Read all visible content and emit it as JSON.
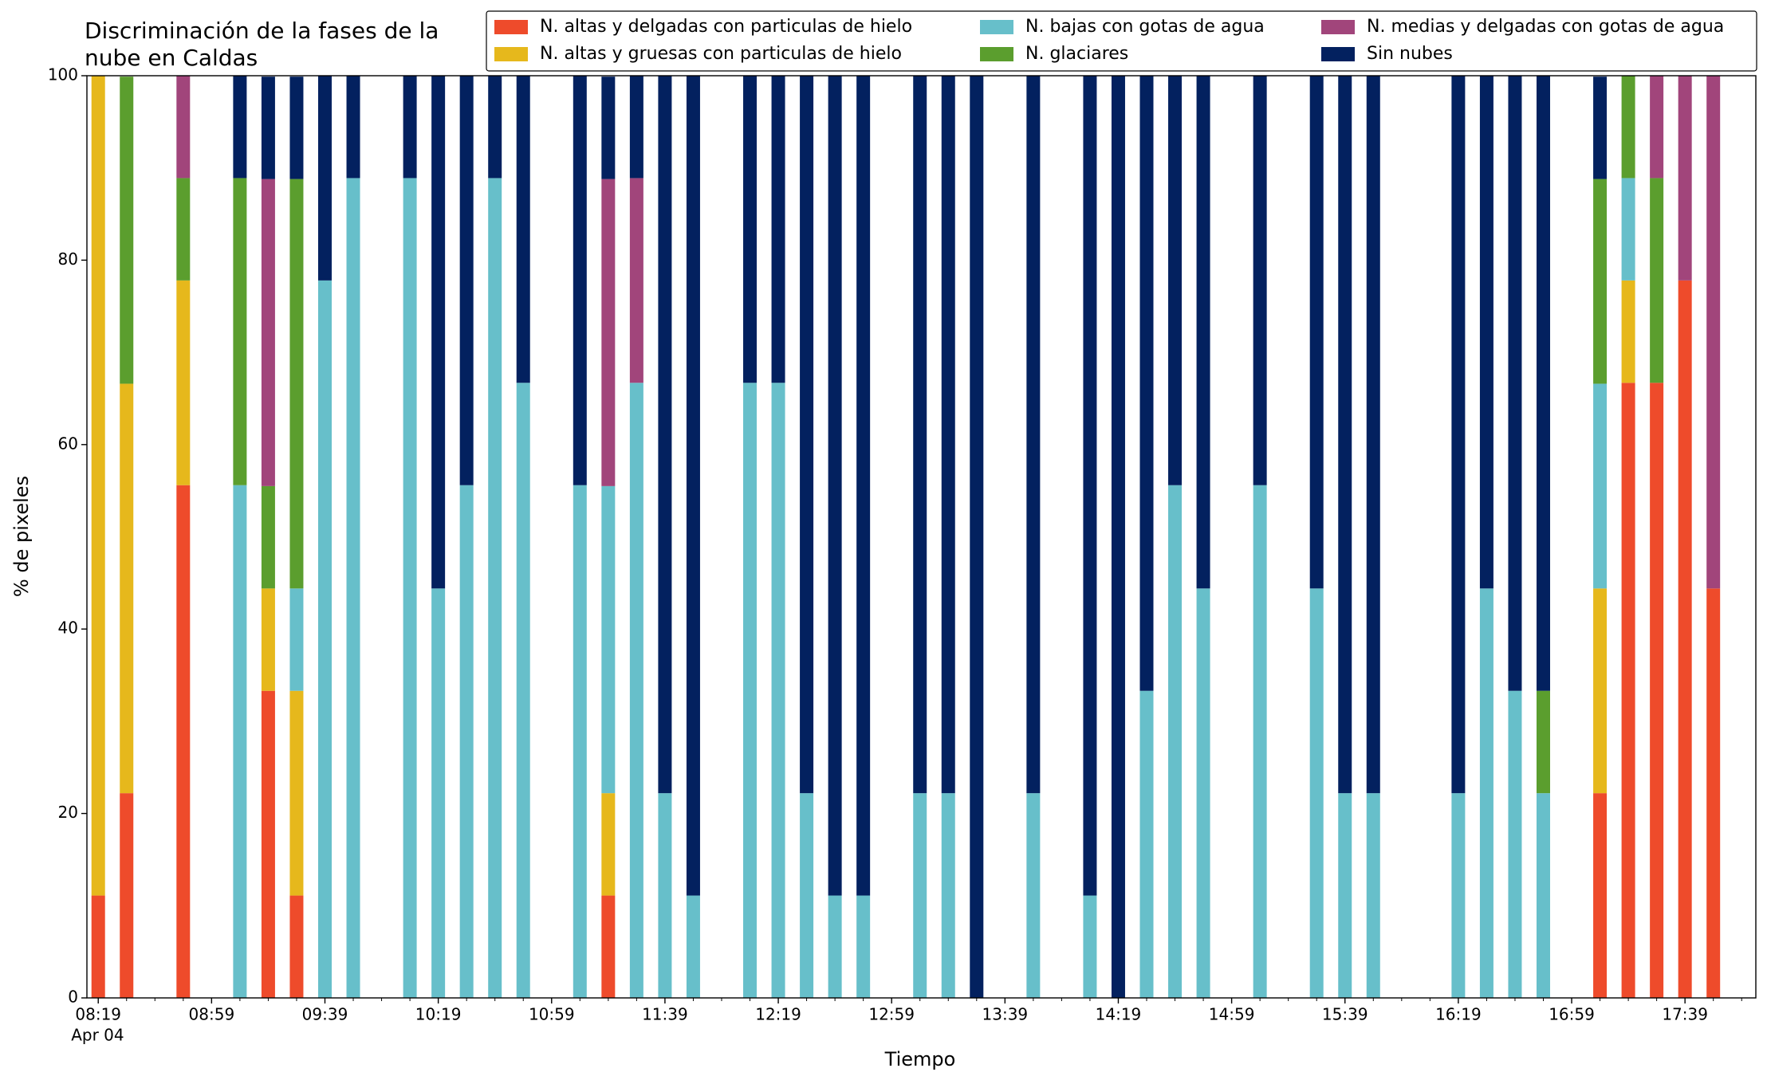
{
  "chart_data": {
    "type": "bar",
    "stacked": true,
    "title": [
      "Discriminación de la fases de la",
      "nube en Caldas"
    ],
    "xlabel": "Tiempo",
    "ylabel": "% de pixeles",
    "x": [
      "08:19",
      "08:29",
      "08:49",
      "09:09",
      "09:19",
      "09:29",
      "09:39",
      "09:49",
      "10:09",
      "10:19",
      "10:29",
      "10:39",
      "10:49",
      "11:09",
      "11:19",
      "11:29",
      "11:39",
      "11:49",
      "12:09",
      "12:19",
      "12:29",
      "12:39",
      "12:49",
      "13:09",
      "13:19",
      "13:29",
      "13:49",
      "14:09",
      "14:19",
      "14:29",
      "14:39",
      "14:49",
      "15:09",
      "15:29",
      "15:39",
      "15:49",
      "16:19",
      "16:29",
      "16:39",
      "16:49",
      "17:09",
      "17:19",
      "17:29",
      "17:39",
      "17:49"
    ],
    "series": [
      {
        "name": "N. altas y delgadas con particulas de hielo",
        "color": "#ee4b2b",
        "values": [
          11.1,
          22.2,
          55.6,
          0,
          33.3,
          11.1,
          0,
          0,
          0,
          0,
          0,
          0,
          0,
          0,
          11.1,
          0,
          0,
          0,
          0,
          0,
          0,
          0,
          0,
          0,
          0,
          0,
          0,
          0,
          0,
          0,
          0,
          0,
          0,
          0,
          0,
          0,
          0,
          0,
          0,
          0,
          22.2,
          66.7,
          66.7,
          77.8,
          44.4
        ]
      },
      {
        "name": "N. altas y gruesas con particulas de hielo",
        "color": "#e6b81c",
        "values": [
          88.9,
          44.4,
          22.2,
          0,
          11.1,
          22.2,
          0,
          0,
          0,
          0,
          0,
          0,
          0,
          0,
          11.1,
          0,
          0,
          0,
          0,
          0,
          0,
          0,
          0,
          0,
          0,
          0,
          0,
          0,
          0,
          0,
          0,
          0,
          0,
          0,
          0,
          0,
          0,
          0,
          0,
          0,
          22.2,
          11.1,
          0,
          0,
          0
        ]
      },
      {
        "name": "N. bajas con gotas de agua",
        "color": "#67bfca",
        "values": [
          0,
          0,
          0,
          55.6,
          0,
          11.1,
          77.8,
          88.9,
          88.9,
          44.4,
          55.6,
          88.9,
          66.7,
          55.6,
          33.3,
          66.7,
          22.2,
          11.1,
          66.7,
          66.7,
          22.2,
          11.1,
          11.1,
          22.2,
          22.2,
          0,
          22.2,
          11.1,
          0,
          33.3,
          55.6,
          44.4,
          55.6,
          44.4,
          22.2,
          22.2,
          22.2,
          44.4,
          33.3,
          22.2,
          22.2,
          11.1,
          0,
          0,
          0
        ]
      },
      {
        "name": "N. glaciares",
        "color": "#5b9e2e",
        "values": [
          0,
          33.3,
          11.1,
          33.3,
          11.1,
          44.4,
          0,
          0,
          0,
          0,
          0,
          0,
          0,
          0,
          0,
          0,
          0,
          0,
          0,
          0,
          0,
          0,
          0,
          0,
          0,
          0,
          0,
          0,
          0,
          0,
          0,
          0,
          0,
          0,
          0,
          0,
          0,
          0,
          0,
          11.1,
          22.2,
          11.1,
          22.2,
          0,
          0
        ]
      },
      {
        "name": "N. medias y delgadas con gotas de agua",
        "color": "#a1457b",
        "values": [
          0,
          0,
          11.1,
          0,
          33.3,
          0,
          0,
          0,
          0,
          0,
          0,
          0,
          0,
          0,
          33.3,
          22.2,
          0,
          0,
          0,
          0,
          0,
          0,
          0,
          0,
          0,
          0,
          0,
          0,
          0,
          0,
          0,
          0,
          0,
          0,
          0,
          0,
          0,
          0,
          0,
          0,
          0,
          0,
          11.1,
          22.2,
          55.6
        ]
      },
      {
        "name": "Sin nubes",
        "color": "#03215f",
        "values": [
          0,
          0,
          0,
          11.1,
          11.1,
          11.1,
          22.2,
          11.1,
          11.1,
          55.6,
          44.4,
          11.1,
          33.3,
          44.4,
          11.1,
          11.1,
          77.8,
          88.9,
          33.3,
          33.3,
          77.8,
          88.9,
          88.9,
          77.8,
          77.8,
          100,
          77.8,
          88.9,
          100,
          66.7,
          44.4,
          55.6,
          44.4,
          55.6,
          77.8,
          77.8,
          77.8,
          55.6,
          66.7,
          66.7,
          11.1,
          0,
          0,
          0,
          0
        ]
      }
    ],
    "xlim": [
      "08:15",
      "18:04"
    ],
    "xticks": [
      "08:19",
      "08:59",
      "09:39",
      "10:19",
      "10:59",
      "11:39",
      "12:19",
      "12:59",
      "13:39",
      "14:19",
      "14:59",
      "15:39",
      "16:19",
      "16:59",
      "17:39"
    ],
    "xtick_sublabel": "Apr 04",
    "xminorticks": [
      "08:29",
      "08:39",
      "08:49",
      "09:09",
      "09:19",
      "09:29",
      "09:49",
      "09:59",
      "10:09",
      "10:29",
      "10:39",
      "10:49",
      "11:09",
      "11:19",
      "11:29",
      "11:49",
      "11:59",
      "12:09",
      "12:29",
      "12:39",
      "12:49",
      "13:09",
      "13:19",
      "13:29",
      "13:49",
      "13:59",
      "14:09",
      "14:29",
      "14:39",
      "14:49",
      "15:09",
      "15:19",
      "15:29",
      "15:49",
      "15:59",
      "16:09",
      "16:29",
      "16:39",
      "16:49",
      "17:09",
      "17:19",
      "17:29",
      "17:49",
      "17:59"
    ],
    "ylim": [
      0,
      100
    ],
    "yticks": [
      0,
      20,
      40,
      60,
      80,
      100
    ],
    "grid": false,
    "legend": "upper right",
    "legend_columns": 3
  }
}
